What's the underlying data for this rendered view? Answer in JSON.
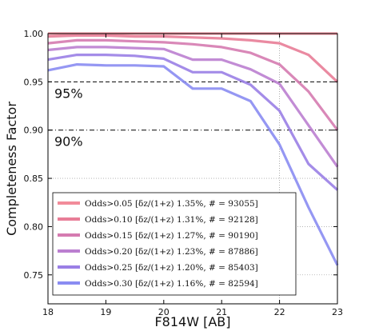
{
  "chart_data": {
    "type": "line",
    "title": "",
    "xlabel": "F814W [AB]",
    "ylabel": "Completeness Factor",
    "xlim": [
      18,
      23
    ],
    "ylim": [
      0.72,
      1.0
    ],
    "x_ticks": [
      18,
      19,
      20,
      21,
      22,
      23
    ],
    "y_ticks": [
      0.75,
      0.8,
      0.85,
      0.9,
      0.95,
      1.0
    ],
    "y_tick_labels": [
      "0.75",
      "0.80",
      "0.85",
      "0.90",
      "0.95",
      "1.00"
    ],
    "grid": "partial dotted",
    "legend_position": "lower-left",
    "x": [
      18.0,
      18.5,
      19.0,
      19.5,
      20.0,
      20.5,
      21.0,
      21.5,
      22.0,
      22.5,
      23.0
    ],
    "series": [
      {
        "name": "Odds>0.05",
        "legend_label": "Odds>0.05 [δz/(1+z)   1.35%, # = 93055]",
        "color": "#f28c9a",
        "values": [
          1.0,
          1.0,
          1.0,
          1.0,
          1.0,
          1.0,
          1.0,
          1.0,
          1.0,
          1.0,
          1.0
        ]
      },
      {
        "name": "Odds>0.10",
        "legend_label": "Odds>0.10 [δz/(1+z)   1.31%, # = 92128]",
        "color": "#e87d97",
        "values": [
          0.997,
          0.998,
          0.998,
          0.997,
          0.997,
          0.996,
          0.995,
          0.993,
          0.99,
          0.978,
          0.95
        ]
      },
      {
        "name": "Odds>0.15",
        "legend_label": "Odds>0.15 [δz/(1+z)   1.27%, # = 90190]",
        "color": "#d57bb0",
        "values": [
          0.99,
          0.993,
          0.993,
          0.992,
          0.991,
          0.989,
          0.986,
          0.98,
          0.968,
          0.94,
          0.9
        ]
      },
      {
        "name": "Odds>0.20",
        "legend_label": "Odds>0.20 [δz/(1+z)   1.23%, # = 87886]",
        "color": "#bb7fd0",
        "values": [
          0.983,
          0.986,
          0.986,
          0.985,
          0.984,
          0.973,
          0.973,
          0.963,
          0.948,
          0.905,
          0.862
        ]
      },
      {
        "name": "Odds>0.25",
        "legend_label": "Odds>0.25 [δz/(1+z)   1.20%, # = 85403]",
        "color": "#9a7fe5",
        "values": [
          0.973,
          0.978,
          0.978,
          0.977,
          0.974,
          0.96,
          0.96,
          0.947,
          0.92,
          0.865,
          0.838
        ]
      },
      {
        "name": "Odds>0.30",
        "legend_label": "Odds>0.30 [δz/(1+z)   1.16%, # = 82594]",
        "color": "#8a8cf2",
        "values": [
          0.962,
          0.968,
          0.967,
          0.967,
          0.966,
          0.943,
          0.943,
          0.93,
          0.885,
          0.82,
          0.76
        ]
      }
    ],
    "reference_lines": [
      {
        "y": 0.95,
        "style": "dashed",
        "label": "95%"
      },
      {
        "y": 0.9,
        "style": "dash-dot",
        "label": "90%"
      }
    ],
    "vertical_reference_x": 22
  }
}
